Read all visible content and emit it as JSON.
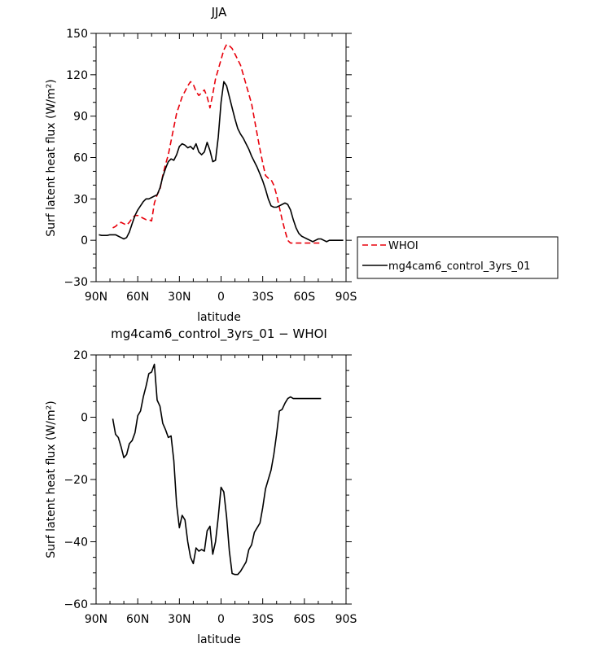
{
  "chart_data": [
    {
      "type": "line",
      "title": "JJA",
      "xlabel": "latitude",
      "ylabel": "Surf latent heat flux (W/m²)",
      "xlim": [
        90,
        -90
      ],
      "ylim": [
        -30,
        150
      ],
      "xticks": [
        {
          "v": 90,
          "label": "90N"
        },
        {
          "v": 60,
          "label": "60N"
        },
        {
          "v": 30,
          "label": "30N"
        },
        {
          "v": 0,
          "label": "0"
        },
        {
          "v": -30,
          "label": "30S"
        },
        {
          "v": -60,
          "label": "60S"
        },
        {
          "v": -90,
          "label": "90S"
        }
      ],
      "yticks": [
        {
          "v": -30,
          "label": "−30"
        },
        {
          "v": 0,
          "label": "0"
        },
        {
          "v": 30,
          "label": "30"
        },
        {
          "v": 60,
          "label": "60"
        },
        {
          "v": 90,
          "label": "90"
        },
        {
          "v": 120,
          "label": "120"
        },
        {
          "v": 150,
          "label": "150"
        }
      ],
      "grid": false,
      "legend_position": "right",
      "series": [
        {
          "name": "WHOI",
          "color": "#e8000b",
          "dash": true,
          "x": [
            78,
            76,
            74,
            72,
            70,
            68,
            66,
            64,
            62,
            60,
            58,
            56,
            54,
            52,
            50,
            48,
            46,
            44,
            42,
            40,
            38,
            36,
            34,
            32,
            30,
            28,
            26,
            24,
            22,
            20,
            18,
            16,
            14,
            12,
            10,
            8,
            6,
            4,
            2,
            0,
            -2,
            -4,
            -6,
            -8,
            -10,
            -12,
            -14,
            -16,
            -18,
            -20,
            -22,
            -24,
            -26,
            -28,
            -30,
            -32,
            -34,
            -36,
            -38,
            -40,
            -42,
            -44,
            -46,
            -48,
            -50,
            -52,
            -54,
            -56,
            -58,
            -60,
            -62,
            -64,
            -66,
            -68,
            -70,
            -72
          ],
          "y": [
            9,
            10,
            12,
            13,
            12,
            11,
            13,
            16,
            18,
            18,
            17,
            16,
            15,
            15,
            14,
            27,
            33,
            37,
            47,
            55,
            62,
            72,
            82,
            92,
            98,
            104,
            108,
            112,
            115,
            113,
            108,
            105,
            107,
            109,
            104,
            96,
            106,
            117,
            124,
            131,
            138,
            142,
            141,
            139,
            135,
            131,
            127,
            120,
            113,
            106,
            99,
            88,
            77,
            66,
            56,
            47,
            45,
            44,
            40,
            33,
            24,
            15,
            7,
            0,
            -2,
            -2,
            -2,
            -2,
            -2,
            -2,
            -2,
            -2,
            -2,
            -2,
            -2,
            -2
          ]
        },
        {
          "name": "mg4cam6_control_3yrs_01",
          "color": "#000000",
          "dash": false,
          "x": [
            88,
            86,
            84,
            82,
            80,
            78,
            76,
            74,
            72,
            70,
            68,
            66,
            64,
            62,
            60,
            58,
            56,
            54,
            52,
            50,
            48,
            46,
            44,
            42,
            40,
            38,
            36,
            34,
            32,
            30,
            28,
            26,
            24,
            22,
            20,
            18,
            16,
            14,
            12,
            10,
            8,
            6,
            4,
            2,
            0,
            -2,
            -4,
            -6,
            -8,
            -10,
            -12,
            -14,
            -16,
            -18,
            -20,
            -22,
            -24,
            -26,
            -28,
            -30,
            -32,
            -34,
            -36,
            -38,
            -40,
            -42,
            -44,
            -46,
            -48,
            -50,
            -52,
            -54,
            -56,
            -58,
            -60,
            -62,
            -64,
            -66,
            -68,
            -70,
            -72,
            -74,
            -76,
            -78,
            -80,
            -82,
            -84,
            -86,
            -88
          ],
          "y": [
            4,
            3.5,
            3.5,
            3.5,
            4,
            4,
            4,
            3,
            2,
            1,
            2,
            6,
            12,
            18,
            22,
            25,
            28,
            30,
            30,
            31,
            32,
            33,
            38,
            46,
            52,
            57,
            59,
            58,
            62,
            68,
            70,
            69,
            67,
            68,
            66,
            70,
            64,
            62,
            64,
            71,
            65,
            57,
            58,
            75,
            100,
            115,
            112,
            104,
            96,
            88,
            81,
            77,
            74,
            70,
            66,
            61,
            57,
            53,
            48,
            43,
            37,
            30,
            25,
            24,
            24,
            25,
            26,
            27,
            26,
            22,
            15,
            9,
            5,
            3,
            2,
            1,
            0,
            -1,
            0,
            1,
            1,
            0,
            -1,
            0,
            0,
            0,
            0,
            0,
            0
          ]
        }
      ]
    },
    {
      "type": "line",
      "title": "mg4cam6_control_3yrs_01 − WHOI",
      "xlabel": "latitude",
      "ylabel": "Surf latent heat flux (W/m²)",
      "xlim": [
        90,
        -90
      ],
      "ylim": [
        -60,
        20
      ],
      "xticks": [
        {
          "v": 90,
          "label": "90N"
        },
        {
          "v": 60,
          "label": "60N"
        },
        {
          "v": 30,
          "label": "30N"
        },
        {
          "v": 0,
          "label": "0"
        },
        {
          "v": -30,
          "label": "30S"
        },
        {
          "v": -60,
          "label": "60S"
        },
        {
          "v": -90,
          "label": "90S"
        }
      ],
      "yticks": [
        {
          "v": -60,
          "label": "−60"
        },
        {
          "v": -40,
          "label": "−40"
        },
        {
          "v": -20,
          "label": "−20"
        },
        {
          "v": 0,
          "label": "0"
        },
        {
          "v": 20,
          "label": "20"
        }
      ],
      "grid": false,
      "series": [
        {
          "color": "#000000",
          "dash": false,
          "x": [
            78,
            76,
            74,
            72,
            70,
            68,
            66,
            64,
            62,
            60,
            58,
            56,
            54,
            52,
            50,
            48,
            46,
            44,
            42,
            40,
            38,
            36,
            34,
            32,
            30,
            28,
            26,
            24,
            22,
            20,
            18,
            16,
            14,
            12,
            10,
            8,
            6,
            4,
            2,
            0,
            -2,
            -4,
            -6,
            -8,
            -10,
            -12,
            -14,
            -16,
            -18,
            -20,
            -22,
            -24,
            -26,
            -28,
            -30,
            -32,
            -34,
            -36,
            -38,
            -40,
            -42,
            -44,
            -46,
            -48,
            -50,
            -52,
            -54,
            -56,
            -58,
            -60,
            -62,
            -64,
            -66,
            -68,
            -70,
            -72
          ],
          "y": [
            -0.5,
            -5.5,
            -6.5,
            -9.5,
            -13,
            -12,
            -8.5,
            -7.5,
            -5,
            0.5,
            2,
            6.5,
            10,
            14,
            14.5,
            17,
            5.5,
            3.5,
            -2,
            -4,
            -6.5,
            -6,
            -14,
            -28,
            -35.5,
            -31.5,
            -33,
            -40,
            -45,
            -47,
            -42,
            -43,
            -42.5,
            -43,
            -36.5,
            -35,
            -44,
            -40,
            -32,
            -22.5,
            -24,
            -32,
            -43,
            -50.2,
            -50.5,
            -50.5,
            -49.5,
            -48,
            -46.5,
            -42.5,
            -41,
            -37,
            -35.5,
            -34,
            -29,
            -23,
            -20,
            -17,
            -12,
            -5.5,
            2,
            2.5,
            4.5,
            6,
            6.5,
            6,
            6,
            6,
            6,
            6,
            6,
            6,
            6,
            6,
            6,
            6
          ]
        }
      ]
    }
  ]
}
